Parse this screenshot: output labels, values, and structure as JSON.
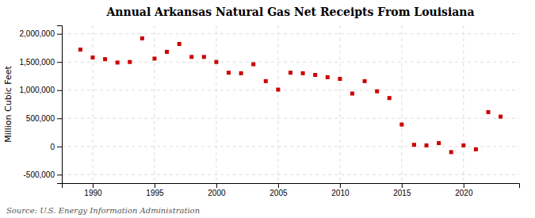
{
  "chart_data": {
    "type": "scatter",
    "title": "Annual Arkansas Natural Gas Net Receipts From Louisiana",
    "ylabel": "Million Cubic Feet",
    "source": "Source: U.S. Energy Information Administration",
    "color": "#cc0000",
    "marker": "square",
    "grid": true,
    "xlim": [
      1987.5,
      2024.5
    ],
    "ylim": [
      -650000,
      2150000
    ],
    "xticks": [
      1990,
      1995,
      2000,
      2005,
      2010,
      2015,
      2020
    ],
    "yticks": [
      {
        "value": -500000,
        "label": "-500,000"
      },
      0,
      {
        "value": 500000,
        "label": "500,000"
      },
      {
        "value": 1000000,
        "label": "1,000,000"
      },
      {
        "value": 1500000,
        "label": "1,500,000"
      },
      {
        "value": 2000000,
        "label": "2,000,000"
      }
    ],
    "x": [
      1989,
      1990,
      1991,
      1992,
      1993,
      1994,
      1995,
      1996,
      1997,
      1998,
      1999,
      2000,
      2001,
      2002,
      2003,
      2004,
      2005,
      2006,
      2007,
      2008,
      2009,
      2010,
      2011,
      2012,
      2013,
      2014,
      2015,
      2016,
      2017,
      2018,
      2019,
      2020,
      2021,
      2022,
      2023
    ],
    "values": [
      1720000,
      1580000,
      1550000,
      1490000,
      1500000,
      1920000,
      1560000,
      1680000,
      1820000,
      1590000,
      1590000,
      1500000,
      1310000,
      1300000,
      1460000,
      1160000,
      1010000,
      1310000,
      1300000,
      1270000,
      1230000,
      1200000,
      940000,
      1160000,
      980000,
      860000,
      390000,
      30000,
      20000,
      60000,
      -100000,
      20000,
      -50000,
      610000,
      530000
    ]
  }
}
